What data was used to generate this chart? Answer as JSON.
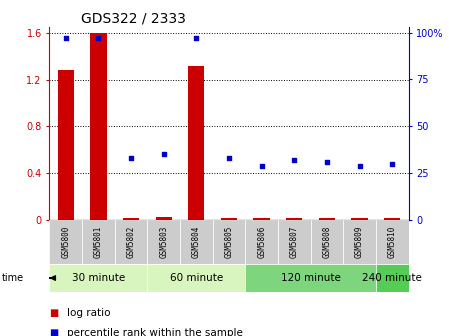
{
  "title": "GDS322 / 2333",
  "samples": [
    "GSM5800",
    "GSM5801",
    "GSM5802",
    "GSM5803",
    "GSM5804",
    "GSM5805",
    "GSM5806",
    "GSM5807",
    "GSM5808",
    "GSM5809",
    "GSM5810"
  ],
  "log_ratio": [
    1.28,
    1.6,
    0.02,
    0.03,
    1.32,
    0.02,
    0.02,
    0.02,
    0.02,
    0.02,
    0.02
  ],
  "percentile_rank": [
    97,
    97,
    33,
    35,
    97,
    33,
    29,
    32,
    31,
    29,
    30
  ],
  "groups": [
    {
      "label": "30 minute",
      "start": 0,
      "end": 2,
      "color": "#d8f5c0"
    },
    {
      "label": "60 minute",
      "start": 3,
      "end": 5,
      "color": "#d8f5c0"
    },
    {
      "label": "120 minute",
      "start": 6,
      "end": 9,
      "color": "#7dd67d"
    },
    {
      "label": "240 minute",
      "start": 10,
      "end": 10,
      "color": "#55cc55"
    }
  ],
  "ylim_left": [
    0,
    1.65
  ],
  "ylim_right": [
    0,
    103
  ],
  "yticks_left": [
    0,
    0.4,
    0.8,
    1.2,
    1.6
  ],
  "yticks_right": [
    0,
    25,
    50,
    75,
    100
  ],
  "ytick_labels_right": [
    "0",
    "25",
    "50",
    "75",
    "100%"
  ],
  "bar_color": "#cc0000",
  "dot_color": "#0000cc",
  "grid_color": "#000000",
  "bg_color": "#ffffff",
  "sample_bg": "#cccccc",
  "left_tick_color": "#cc0000",
  "right_tick_color": "#0000cc",
  "title_fontsize": 10,
  "tick_fontsize": 7,
  "label_fontsize": 7.5,
  "group_label_fontsize": 7.5,
  "sample_fontsize": 5.5
}
